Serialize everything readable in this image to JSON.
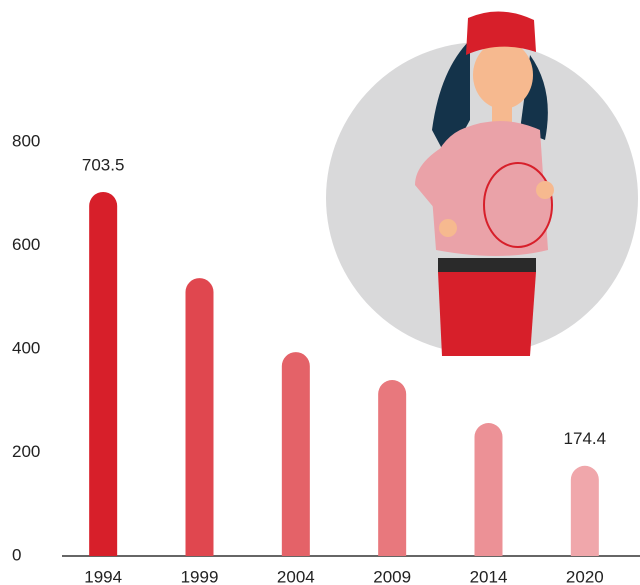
{
  "chart_data": {
    "type": "bar",
    "categories": [
      "1994",
      "1999",
      "2004",
      "2009",
      "2014",
      "2020"
    ],
    "values": [
      703.5,
      537,
      394,
      340,
      257,
      174.4
    ],
    "value_labels": [
      "703.5",
      null,
      null,
      null,
      null,
      "174.4"
    ],
    "colors": [
      "#d71f2a",
      "#e0474f",
      "#e46268",
      "#e8787d",
      "#ec9196",
      "#f0a7ab"
    ],
    "ylim": [
      0,
      800
    ],
    "yticks": [
      0,
      200,
      400,
      600,
      800
    ],
    "grid": false
  }
}
